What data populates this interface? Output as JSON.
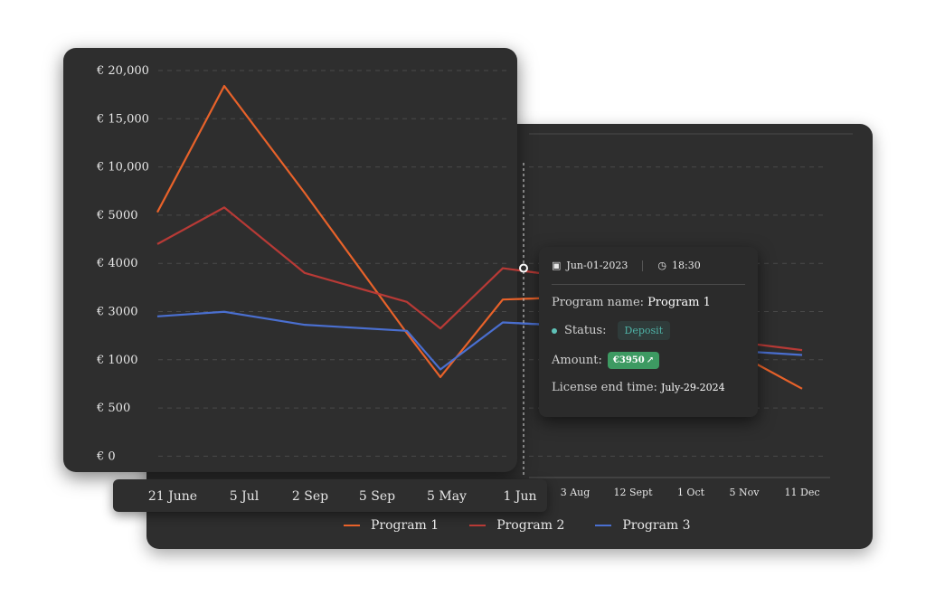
{
  "chart_data": {
    "type": "line",
    "categories": [
      "21 June",
      "5 Jul",
      "2 Sep",
      "5 Sep",
      "5 May",
      "1 Jun",
      "3 Aug",
      "12 Sept",
      "1 Oct",
      "5 Nov",
      "11 Dec"
    ],
    "y_ticks": [
      "€ 0",
      "€ 500",
      "€ 1000",
      "€ 3000",
      "€ 4000",
      "€ 5000",
      "€ 10,000",
      "€ 15,000",
      "€ 20,000"
    ],
    "series": [
      {
        "name": "Program 1",
        "color": "#e8622a",
        "values": [
          5300,
          18400,
          7300,
          2100,
          820,
          3250,
          3300,
          2600,
          1000,
          1100,
          700
        ]
      },
      {
        "name": "Program 2",
        "color": "#b83a36",
        "values": [
          4400,
          5800,
          3800,
          3200,
          2300,
          3900,
          3700,
          3000,
          1900,
          1700,
          1400
        ]
      },
      {
        "name": "Program 3",
        "color": "#4a6fd0",
        "values": [
          2800,
          2990,
          2450,
          2200,
          900,
          2550,
          2400,
          1900,
          1350,
          1350,
          1200
        ]
      }
    ],
    "grid": true,
    "legend_position": "bottom"
  },
  "tooltip": {
    "date": "Jun-01-2023",
    "time": "18:30",
    "program_label": "Program name:",
    "program_value": "Program 1",
    "status_label": "Status:",
    "status_value": "Deposit",
    "amount_label": "Amount:",
    "amount_value": "€3950",
    "license_label": "License end time:",
    "license_value": "July-29-2024",
    "icons": {
      "date": "calendar-icon",
      "time": "clock-icon",
      "trend": "trend-up-icon"
    }
  }
}
